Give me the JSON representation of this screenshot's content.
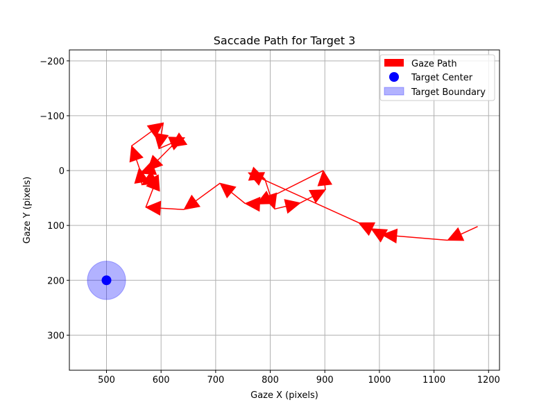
{
  "chart_data": {
    "type": "scatter",
    "title": "Saccade Path for Target 3",
    "xlabel": "Gaze X (pixels)",
    "ylabel": "Gaze Y (pixels)",
    "xlim": [
      432,
      1220
    ],
    "ylim": [
      -220,
      364
    ],
    "y_inverted": true,
    "grid": true,
    "legend_position": "top-right",
    "xticks": [
      500,
      600,
      700,
      800,
      900,
      1000,
      1100,
      1200
    ],
    "yticks": [
      -200,
      -100,
      0,
      100,
      200,
      300
    ],
    "xtick_labels": [
      "500",
      "600",
      "700",
      "800",
      "900",
      "1000",
      "1100",
      "1200"
    ],
    "ytick_labels": [
      "−200",
      "−100",
      "0",
      "100",
      "200",
      "300"
    ],
    "series": [
      {
        "name": "Gaze Path",
        "kind": "arrow-path",
        "color": "#ff0000",
        "points": [
          [
            1180,
            102
          ],
          [
            1125,
            127
          ],
          [
            1005,
            117
          ],
          [
            985,
            106
          ],
          [
            962,
            95
          ],
          [
            760,
            4
          ],
          [
            790,
            15
          ],
          [
            808,
            70
          ],
          [
            855,
            59
          ],
          [
            901,
            35
          ],
          [
            897,
            0
          ],
          [
            775,
            61
          ],
          [
            754,
            60
          ],
          [
            708,
            23
          ],
          [
            642,
            71
          ],
          [
            572,
            67
          ],
          [
            595,
            8
          ],
          [
            565,
            26
          ],
          [
            560,
            -5
          ],
          [
            546,
            -45
          ],
          [
            604,
            -87
          ],
          [
            596,
            -40
          ],
          [
            643,
            -60
          ],
          [
            618,
            -43
          ],
          [
            575,
            0
          ],
          [
            562,
            5
          ]
        ]
      },
      {
        "name": "Target Center",
        "kind": "point",
        "color": "#0000ff",
        "points": [
          [
            500,
            200
          ]
        ]
      },
      {
        "name": "Target Boundary",
        "kind": "circle",
        "color": "#0000ff",
        "opacity": 0.3,
        "center": [
          500,
          200
        ],
        "radius": 35
      }
    ]
  }
}
